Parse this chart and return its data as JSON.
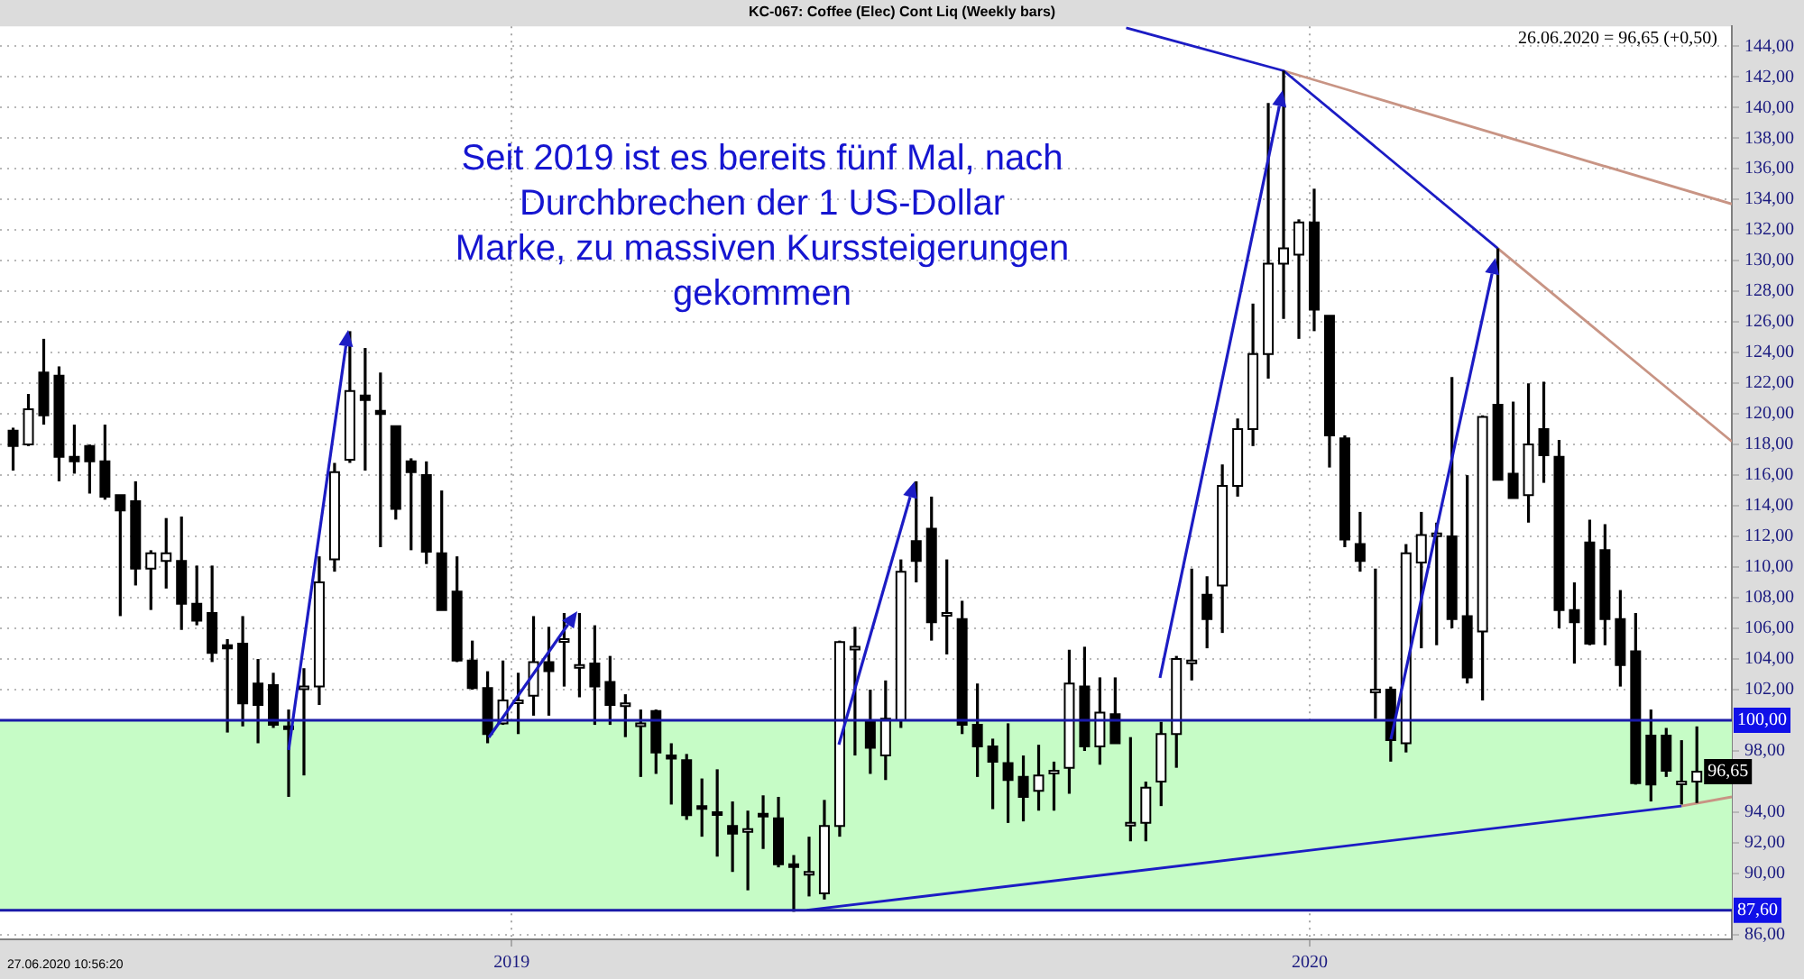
{
  "chart_data": {
    "type": "candlestick",
    "title": "KC-067: Coffee (Elec) Cont Liq (Weekly bars)",
    "color": "#000000",
    "colors": [
      "#000000",
      "#ffffff",
      "#000000",
      "#000000",
      "#000000",
      "#000000",
      "#000000",
      "#000000",
      "#000000",
      "#ffffff",
      "#ffffff",
      "#000000",
      "#000000",
      "#000000",
      "#000000",
      "#000000",
      "#000000",
      "#000000",
      "#000000",
      "#ffffff",
      "#ffffff",
      "#ffffff",
      "#ffffff",
      "#000000",
      "#000000",
      "#000000",
      "#000000",
      "#000000",
      "#000000",
      "#000000",
      "#000000",
      "#000000",
      "#ffffff",
      "#ffffff",
      "#ffffff",
      "#000000",
      "#ffffff",
      "#ffffff",
      "#000000",
      "#000000",
      "#ffffff",
      "#ffffff",
      "#000000",
      "#000000",
      "#000000",
      "#000000",
      "#000000",
      "#000000",
      "#ffffff",
      "#000000",
      "#000000",
      "#000000",
      "#ffffff",
      "#ffffff",
      "#ffffff",
      "#ffffff",
      "#000000",
      "#ffffff",
      "#ffffff",
      "#000000",
      "#000000",
      "#ffffff",
      "#000000",
      "#000000",
      "#000000",
      "#000000",
      "#000000",
      "#ffffff",
      "#ffffff",
      "#ffffff",
      "#000000",
      "#ffffff",
      "#000000",
      "#ffffff",
      "#ffffff",
      "#ffffff",
      "#ffffff",
      "#ffffff",
      "#000000",
      "#ffffff",
      "#ffffff",
      "#ffffff",
      "#ffffff",
      "#ffffff",
      "#ffffff",
      "#000000",
      "#000000",
      "#000000",
      "#000000",
      "#ffffff",
      "#000000",
      "#ffffff",
      "#ffffff",
      "#ffffff",
      "#000000",
      "#000000",
      "#ffffff",
      "#000000",
      "#000000",
      "#ffffff",
      "#000000",
      "#000000",
      "#000000",
      "#000000",
      "#000000",
      "#000000",
      "#000000",
      "#000000",
      "#000000",
      "#ffffff",
      "#ffffff"
    ],
    "x": [
      "2018-05-18",
      "2018-05-25",
      "2018-06-01",
      "2018-06-08",
      "2018-06-15",
      "2018-06-22",
      "2018-06-29",
      "2018-07-06",
      "2018-07-13",
      "2018-07-20",
      "2018-07-27",
      "2018-08-03",
      "2018-08-10",
      "2018-08-17",
      "2018-08-24",
      "2018-08-31",
      "2018-09-07",
      "2018-09-14",
      "2018-09-21",
      "2018-09-28",
      "2018-10-05",
      "2018-10-12",
      "2018-10-19",
      "2018-10-26",
      "2018-11-02",
      "2018-11-09",
      "2018-11-16",
      "2018-11-23",
      "2018-11-30",
      "2018-12-07",
      "2018-12-14",
      "2018-12-21",
      "2018-12-28",
      "2019-01-04",
      "2019-01-11",
      "2019-01-18",
      "2019-01-25",
      "2019-02-01",
      "2019-02-08",
      "2019-02-15",
      "2019-02-22",
      "2019-03-01",
      "2019-03-08",
      "2019-03-15",
      "2019-03-22",
      "2019-03-29",
      "2019-04-05",
      "2019-04-12",
      "2019-04-19",
      "2019-04-26",
      "2019-05-03",
      "2019-05-10",
      "2019-05-17",
      "2019-05-24",
      "2019-05-31",
      "2019-06-07",
      "2019-06-14",
      "2019-06-21",
      "2019-06-28",
      "2019-07-05",
      "2019-07-12",
      "2019-07-19",
      "2019-07-26",
      "2019-08-02",
      "2019-08-09",
      "2019-08-16",
      "2019-08-23",
      "2019-08-30",
      "2019-09-06",
      "2019-09-13",
      "2019-09-20",
      "2019-09-27",
      "2019-10-04",
      "2019-10-11",
      "2019-10-18",
      "2019-10-25",
      "2019-11-01",
      "2019-11-08",
      "2019-11-15",
      "2019-11-22",
      "2019-11-29",
      "2019-12-06",
      "2019-12-13",
      "2019-12-20",
      "2019-12-27",
      "2020-01-03",
      "2020-01-10",
      "2020-01-17",
      "2020-01-24",
      "2020-01-31",
      "2020-02-07",
      "2020-02-14",
      "2020-02-21",
      "2020-02-28",
      "2020-03-06",
      "2020-03-13",
      "2020-03-20",
      "2020-03-27",
      "2020-04-03",
      "2020-04-10",
      "2020-04-17",
      "2020-04-24",
      "2020-05-01",
      "2020-05-08",
      "2020-05-15",
      "2020-05-22",
      "2020-05-29",
      "2020-06-05",
      "2020-06-12",
      "2020-06-19",
      "2020-06-26"
    ],
    "ohlc": [
      [
        118.9,
        119.1,
        116.3,
        117.9
      ],
      [
        118.0,
        121.3,
        117.9,
        120.3
      ],
      [
        122.7,
        124.9,
        119.3,
        119.9
      ],
      [
        122.5,
        123.1,
        115.6,
        117.2
      ],
      [
        117.2,
        119.3,
        116.1,
        116.9
      ],
      [
        117.9,
        118.0,
        114.8,
        116.9
      ],
      [
        116.9,
        119.3,
        114.4,
        114.6
      ],
      [
        114.7,
        114.7,
        106.8,
        113.7
      ],
      [
        114.3,
        115.6,
        108.8,
        109.9
      ],
      [
        109.9,
        111.1,
        107.2,
        110.9
      ],
      [
        110.4,
        113.2,
        108.6,
        110.9
      ],
      [
        110.4,
        113.3,
        105.9,
        107.6
      ],
      [
        107.6,
        110.1,
        106.2,
        106.5
      ],
      [
        107.0,
        110.1,
        103.8,
        104.4
      ],
      [
        104.9,
        105.3,
        99.2,
        104.7
      ],
      [
        105.0,
        106.8,
        99.6,
        101.1
      ],
      [
        102.4,
        104.0,
        98.5,
        101.0
      ],
      [
        102.3,
        103.1,
        99.5,
        99.7
      ],
      [
        99.6,
        100.7,
        95.0,
        99.5
      ],
      [
        102.2,
        103.4,
        96.4,
        102.2
      ],
      [
        102.2,
        110.7,
        101.0,
        109.0
      ],
      [
        110.5,
        116.8,
        109.7,
        116.2
      ],
      [
        117.0,
        125.4,
        116.8,
        121.5
      ],
      [
        121.2,
        124.3,
        116.3,
        120.9
      ],
      [
        120.2,
        122.7,
        111.3,
        120.0
      ],
      [
        119.2,
        119.2,
        113.1,
        113.8
      ],
      [
        116.9,
        117.1,
        111.1,
        116.2
      ],
      [
        116.0,
        116.9,
        110.2,
        111.0
      ],
      [
        110.9,
        115.0,
        107.2,
        107.2
      ],
      [
        108.4,
        110.7,
        103.8,
        103.9
      ],
      [
        103.9,
        105.2,
        102.0,
        102.1
      ],
      [
        102.1,
        103.2,
        98.5,
        99.1
      ],
      [
        99.8,
        103.9,
        99.7,
        101.3
      ],
      [
        101.2,
        103.1,
        99.1,
        101.3
      ],
      [
        101.6,
        106.8,
        100.3,
        103.8
      ],
      [
        103.8,
        106.1,
        100.3,
        103.2
      ],
      [
        105.3,
        107.0,
        102.2,
        105.3
      ],
      [
        103.6,
        107.0,
        101.5,
        103.6
      ],
      [
        103.7,
        106.2,
        99.7,
        102.2
      ],
      [
        102.5,
        104.2,
        99.7,
        101.0
      ],
      [
        101.1,
        101.7,
        98.9,
        101.1
      ],
      [
        99.8,
        100.7,
        96.3,
        99.8
      ],
      [
        100.6,
        100.7,
        96.5,
        97.9
      ],
      [
        97.7,
        98.5,
        94.5,
        97.5
      ],
      [
        97.4,
        97.8,
        93.5,
        93.8
      ],
      [
        94.4,
        96.2,
        92.4,
        94.3
      ],
      [
        94.0,
        96.8,
        91.1,
        93.9
      ],
      [
        93.1,
        94.7,
        90.1,
        92.6
      ],
      [
        92.9,
        94.1,
        88.9,
        92.9
      ],
      [
        93.9,
        95.1,
        91.6,
        93.8
      ],
      [
        93.6,
        95.0,
        90.4,
        90.6
      ],
      [
        90.6,
        91.2,
        87.5,
        90.5
      ],
      [
        90.1,
        92.4,
        88.5,
        90.1
      ],
      [
        88.7,
        94.8,
        88.3,
        93.1
      ],
      [
        93.1,
        105.2,
        92.4,
        105.1
      ],
      [
        104.8,
        106.1,
        97.7,
        104.8
      ],
      [
        100.0,
        102.0,
        96.5,
        98.2
      ],
      [
        97.7,
        102.6,
        96.1,
        100.1
      ],
      [
        100.0,
        110.5,
        99.5,
        109.7
      ],
      [
        111.7,
        115.6,
        109.0,
        110.4
      ],
      [
        112.5,
        114.6,
        105.2,
        106.4
      ],
      [
        107.0,
        110.5,
        104.3,
        107.0
      ],
      [
        106.6,
        107.8,
        99.1,
        99.7
      ],
      [
        99.7,
        102.4,
        96.3,
        98.3
      ],
      [
        98.3,
        98.8,
        94.2,
        97.3
      ],
      [
        97.2,
        99.8,
        93.3,
        96.1
      ],
      [
        96.3,
        97.7,
        93.4,
        95.0
      ],
      [
        95.4,
        98.4,
        94.1,
        96.4
      ],
      [
        96.7,
        97.3,
        94.1,
        96.7
      ],
      [
        96.9,
        104.6,
        95.2,
        102.4
      ],
      [
        102.2,
        104.8,
        98.0,
        98.3
      ],
      [
        98.3,
        102.8,
        97.1,
        100.5
      ],
      [
        100.4,
        102.8,
        98.5,
        98.5
      ],
      [
        93.3,
        98.9,
        92.1,
        93.3
      ],
      [
        93.3,
        96.0,
        92.1,
        95.6
      ],
      [
        96.0,
        99.9,
        94.4,
        99.1
      ],
      [
        99.1,
        104.2,
        96.9,
        104.0
      ],
      [
        103.9,
        109.9,
        102.6,
        103.9
      ],
      [
        108.2,
        109.4,
        104.7,
        106.6
      ],
      [
        108.8,
        116.7,
        105.7,
        115.3
      ],
      [
        115.3,
        119.7,
        114.6,
        119.0
      ],
      [
        119.0,
        127.2,
        117.9,
        123.9
      ],
      [
        123.9,
        140.3,
        122.3,
        129.8
      ],
      [
        129.8,
        142.4,
        126.2,
        130.8
      ],
      [
        130.4,
        132.7,
        124.9,
        132.5
      ],
      [
        132.5,
        134.7,
        125.4,
        126.8
      ],
      [
        126.4,
        126.4,
        116.5,
        118.6
      ],
      [
        118.4,
        118.6,
        111.3,
        111.8
      ],
      [
        111.5,
        113.6,
        109.7,
        110.4
      ],
      [
        102.0,
        109.9,
        100.1,
        102.0
      ],
      [
        102.0,
        102.2,
        97.3,
        98.7
      ],
      [
        98.5,
        111.5,
        97.9,
        110.9
      ],
      [
        110.3,
        113.6,
        104.7,
        112.1
      ],
      [
        112.1,
        112.9,
        104.9,
        112.2
      ],
      [
        112.0,
        122.4,
        106.0,
        106.6
      ],
      [
        106.8,
        116.0,
        102.4,
        102.8
      ],
      [
        105.8,
        119.9,
        101.3,
        119.8
      ],
      [
        120.6,
        130.8,
        115.7,
        115.7
      ],
      [
        116.1,
        120.8,
        114.5,
        114.5
      ],
      [
        114.7,
        122.0,
        112.9,
        118.0
      ],
      [
        119.0,
        122.1,
        115.5,
        117.3
      ],
      [
        117.2,
        118.3,
        106.0,
        107.2
      ],
      [
        107.2,
        109.0,
        103.7,
        106.4
      ],
      [
        111.6,
        113.1,
        104.9,
        105.0
      ],
      [
        111.1,
        112.8,
        104.9,
        106.6
      ],
      [
        106.6,
        108.5,
        102.2,
        103.6
      ],
      [
        104.5,
        107.0,
        95.8,
        95.9
      ],
      [
        99.0,
        100.7,
        94.7,
        95.8
      ],
      [
        99.0,
        99.5,
        96.3,
        96.7
      ],
      [
        96.0,
        98.7,
        94.5,
        96.0
      ],
      [
        96.0,
        99.6,
        94.6,
        96.65
      ]
    ],
    "series": [
      {
        "type": "line",
        "color": "#1c1cc4",
        "x": [
          "2019-10-09",
          "2019-12-20",
          "2020-03-27"
        ],
        "values": [
          145.2,
          142.4,
          130.8
        ]
      },
      {
        "type": "line",
        "color": "#c89484",
        "x": [
          "2019-12-20",
          "2020-07-12"
        ],
        "values": [
          142.4,
          133.7
        ]
      },
      {
        "type": "line",
        "color": "#c89484",
        "x": [
          "2020-03-27",
          "2020-07-12"
        ],
        "values": [
          130.8,
          118.2
        ]
      },
      {
        "type": "line",
        "color": "#1c1cc4",
        "x": [
          "2019-05-16",
          "2020-06-19"
        ],
        "values": [
          87.6,
          94.4
        ]
      },
      {
        "type": "line",
        "color": "#c89484",
        "x": [
          "2020-06-19",
          "2020-07-12"
        ],
        "values": [
          94.4,
          95.0
        ]
      }
    ],
    "bands": [
      {
        "axis": "y",
        "from": 87.6,
        "to": 100,
        "color": "#c6fcc6"
      }
    ],
    "ref_lines": [
      {
        "axis": "y",
        "value": 100,
        "label": "100,00",
        "color": "#1a1aa8"
      },
      {
        "axis": "y",
        "value": 87.6,
        "label": "87,60",
        "color": "#1a1aa8"
      }
    ],
    "annotations": [
      "Seit 2019 ist es bereits fünf Mal, nach\nDurchbrechen der 1 US-Dollar\nMarke, zu massiven Kurssteigerungen\ngekommen",
      "26.06.2020 = 96,65 (+0,50)",
      "27.06.2020 10:56:20",
      {
        "text": "96,65",
        "x": "2020-06-26",
        "y": 96.65
      }
    ],
    "xlim": [
      "2018-05-12",
      "2020-07-12"
    ],
    "xticks": [
      "2019",
      "2020"
    ],
    "ylim": [
      85.7,
      145.3
    ],
    "yticks": [
      {
        "value": 86,
        "label": "86,00"
      },
      {
        "value": 90,
        "label": "90,00"
      },
      {
        "value": 92,
        "label": "92,00"
      },
      {
        "value": 94,
        "label": "94,00"
      },
      {
        "value": 98,
        "label": "98,00"
      },
      {
        "value": 102,
        "label": "102,00"
      },
      {
        "value": 104,
        "label": "104,00"
      },
      {
        "value": 106,
        "label": "106,00"
      },
      {
        "value": 108,
        "label": "108,00"
      },
      {
        "value": 110,
        "label": "110,00"
      },
      {
        "value": 112,
        "label": "112,00"
      },
      {
        "value": 114,
        "label": "114,00"
      },
      {
        "value": 116,
        "label": "116,00"
      },
      {
        "value": 118,
        "label": "118,00"
      },
      {
        "value": 120,
        "label": "120,00"
      },
      {
        "value": 122,
        "label": "122,00"
      },
      {
        "value": 124,
        "label": "124,00"
      },
      {
        "value": 126,
        "label": "126,00"
      },
      {
        "value": 128,
        "label": "128,00"
      },
      {
        "value": 130,
        "label": "130,00"
      },
      {
        "value": 132,
        "label": "132,00"
      },
      {
        "value": 134,
        "label": "134,00"
      },
      {
        "value": 136,
        "label": "136,00"
      },
      {
        "value": 138,
        "label": "138,00"
      },
      {
        "value": 140,
        "label": "140,00"
      },
      {
        "value": 142,
        "label": "142,00"
      },
      {
        "value": 144,
        "label": "144,00"
      }
    ],
    "grid": true
  }
}
